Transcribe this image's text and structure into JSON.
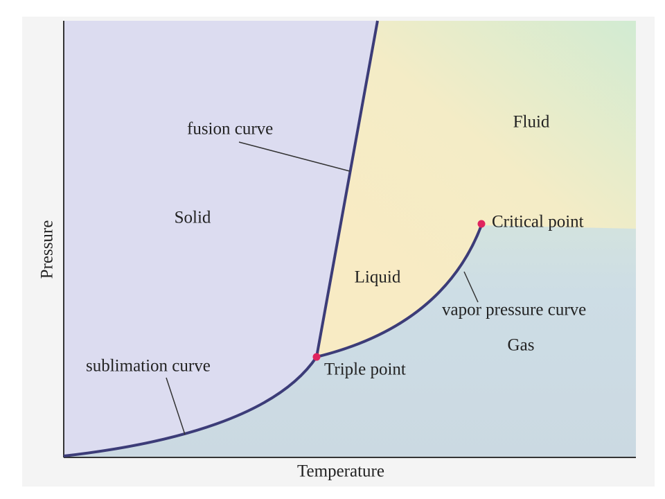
{
  "axes": {
    "x_label": "Temperature",
    "y_label": "Pressure"
  },
  "regions": {
    "solid": "Solid",
    "liquid": "Liquid",
    "gas": "Gas",
    "fluid": "Fluid"
  },
  "curves": {
    "fusion": "fusion curve",
    "sublimation": "sublimation curve",
    "vapor": "vapor pressure curve"
  },
  "points": {
    "triple": "Triple point",
    "critical": "Critical point"
  }
}
